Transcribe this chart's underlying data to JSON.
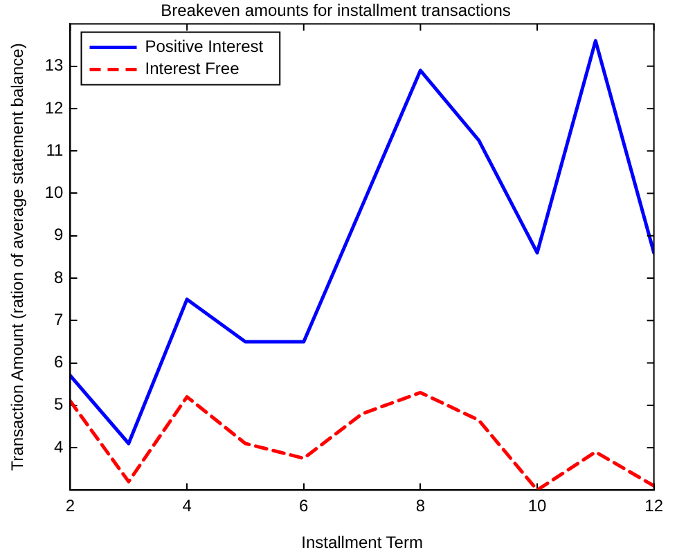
{
  "chart_data": {
    "type": "line",
    "title": "Breakeven amounts for installment transactions",
    "xlabel": "Installment Term",
    "ylabel": "Transaction Amount (ration of average statement balance)",
    "x": [
      2,
      3,
      4,
      5,
      6,
      7,
      8,
      9,
      10,
      11,
      12
    ],
    "series": [
      {
        "name": "Positive Interest",
        "color": "#0000ff",
        "line_style": "solid",
        "values": [
          5.7,
          4.1,
          7.5,
          6.5,
          6.5,
          9.7,
          12.9,
          11.25,
          8.6,
          13.6,
          8.6
        ]
      },
      {
        "name": "Interest Free",
        "color": "#ff0000",
        "line_style": "dashed",
        "values": [
          5.1,
          3.2,
          5.2,
          4.1,
          3.75,
          4.8,
          5.3,
          4.65,
          3.0,
          3.9,
          3.1
        ]
      }
    ],
    "xlim": [
      2,
      12
    ],
    "xticks": [
      2,
      4,
      6,
      8,
      10,
      12
    ],
    "ylim": [
      3,
      14
    ],
    "yticks": [
      4,
      5,
      6,
      7,
      8,
      9,
      10,
      11,
      12,
      13
    ],
    "grid": false,
    "legend": "top left",
    "marker": "none"
  }
}
